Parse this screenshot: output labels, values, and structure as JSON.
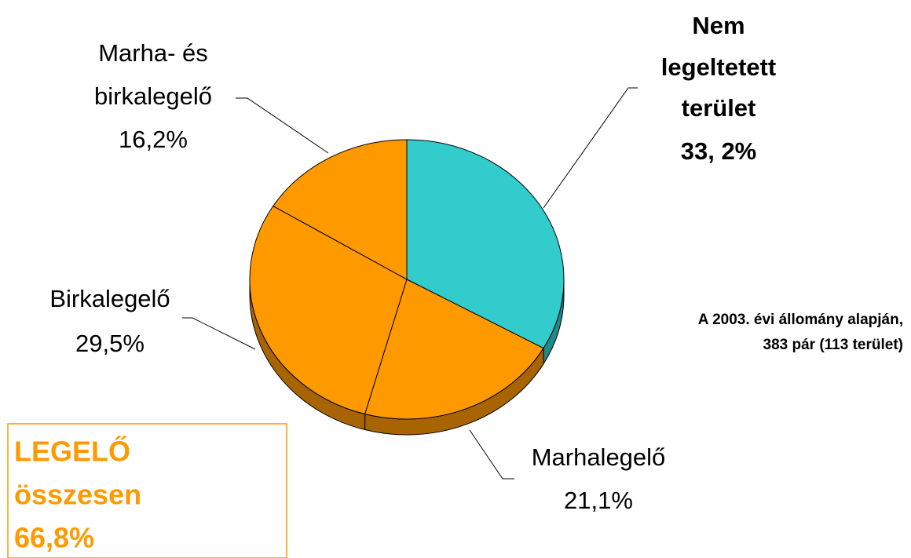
{
  "chart_data": {
    "type": "pie",
    "categories": [
      [
        "Nem",
        "legeltetett",
        "terület"
      ],
      [
        "Marhalegelő"
      ],
      [
        "Birkalegelő"
      ],
      [
        "Marha- és",
        "birkalegelő"
      ]
    ],
    "values": [
      33.2,
      21.1,
      29.5,
      16.2
    ],
    "value_labels": [
      "33, 2%",
      "21,1%",
      "29,5%",
      "16,2%"
    ],
    "colors": [
      "#33cccc",
      "#ff9900",
      "#ff9900",
      "#ff9900"
    ],
    "annotations": [
      [
        "A 2003. évi állomány alapján,",
        "383 pár (113 terület)"
      ],
      [
        "LEGELŐ",
        "összesen",
        "66,8%"
      ]
    ]
  }
}
